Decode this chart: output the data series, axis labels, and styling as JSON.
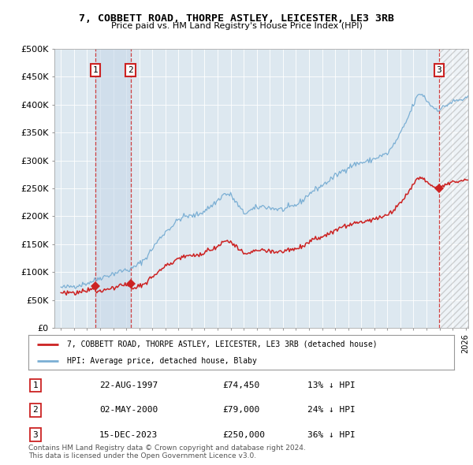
{
  "title_line1": "7, COBBETT ROAD, THORPE ASTLEY, LEICESTER, LE3 3RB",
  "title_line2": "Price paid vs. HM Land Registry's House Price Index (HPI)",
  "legend_line1": "7, COBBETT ROAD, THORPE ASTLEY, LEICESTER, LE3 3RB (detached house)",
  "legend_line2": "HPI: Average price, detached house, Blaby",
  "transactions": [
    {
      "num": 1,
      "date": "22-AUG-1997",
      "date_x": 1997.64,
      "price": 74450,
      "pct": "13%",
      "dir": "↓"
    },
    {
      "num": 2,
      "date": "02-MAY-2000",
      "date_x": 2000.33,
      "price": 79000,
      "pct": "24%",
      "dir": "↓"
    },
    {
      "num": 3,
      "date": "15-DEC-2023",
      "date_x": 2023.96,
      "price": 250000,
      "pct": "36%",
      "dir": "↓"
    }
  ],
  "footer": "Contains HM Land Registry data © Crown copyright and database right 2024.\nThis data is licensed under the Open Government Licence v3.0.",
  "hpi_color": "#7bafd4",
  "price_color": "#cc2222",
  "shade_color": "#c8d8e8",
  "background_color": "#dde8f0",
  "ylim": [
    0,
    500000
  ],
  "xlim_start": 1994.5,
  "xlim_end": 2026.2,
  "yticks": [
    0,
    50000,
    100000,
    150000,
    200000,
    250000,
    300000,
    350000,
    400000,
    450000,
    500000
  ],
  "ytick_labels": [
    "£0",
    "£50K",
    "£100K",
    "£150K",
    "£200K",
    "£250K",
    "£300K",
    "£350K",
    "£400K",
    "£450K",
    "£500K"
  ]
}
